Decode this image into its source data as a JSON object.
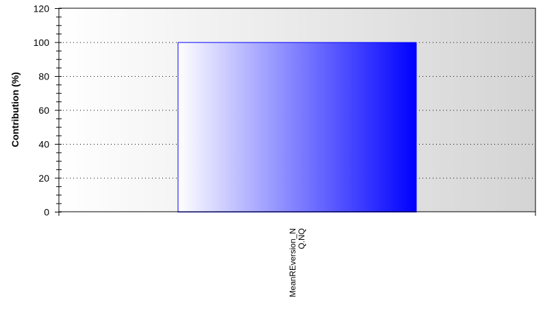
{
  "chart_data": {
    "type": "bar",
    "title": "",
    "xlabel": "",
    "ylabel": "Contribution (%)",
    "ylim": [
      0,
      120
    ],
    "yticks": [
      0,
      20,
      40,
      60,
      80,
      100,
      120
    ],
    "grid": "horizontal dotted",
    "categories": [
      [
        "MeanREversion_N",
        "Q.NQ"
      ]
    ],
    "values": [
      100
    ],
    "colors": {
      "bar_start": "#ffffff",
      "bar_end": "#0000ff",
      "bar_border": "#0000ff",
      "plot_bg_start": "#ffffff",
      "plot_bg_end": "#d4d4d4"
    }
  }
}
